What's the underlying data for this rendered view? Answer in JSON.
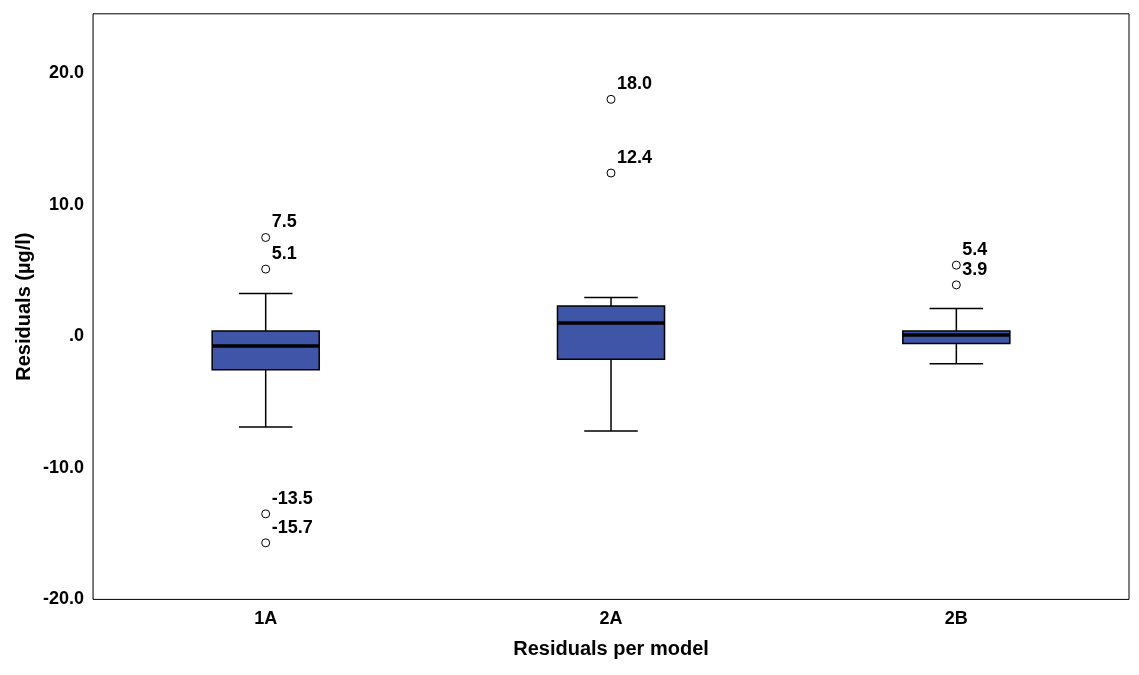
{
  "chart_data": {
    "type": "box",
    "xlabel": "Residuals per model",
    "ylabel": "Residuals (µg/l)",
    "categories": [
      "1A",
      "2A",
      "2B"
    ],
    "color": "#3f56a8",
    "boxes": [
      {
        "low": -6.9,
        "q1": -2.55,
        "median": -0.75,
        "q3": 0.4,
        "high": 3.25,
        "outliers": [
          7.5,
          5.1,
          -13.5,
          -15.7
        ]
      },
      {
        "low": -7.2,
        "q1": -1.75,
        "median": 1.0,
        "q3": 2.3,
        "high": 2.95,
        "outliers": [
          18.0,
          12.4
        ]
      },
      {
        "low": -2.1,
        "q1": -0.55,
        "median": 0.1,
        "q3": 0.4,
        "high": 2.1,
        "outliers": [
          5.4,
          3.9
        ]
      }
    ],
    "ylim": [
      -20,
      24.5
    ],
    "yticks": [
      {
        "value": -20,
        "label": "-20.0"
      },
      {
        "value": -10,
        "label": "-10.0"
      },
      {
        "value": 0,
        "label": ".0"
      },
      {
        "value": 10,
        "label": "10.0"
      },
      {
        "value": 20,
        "label": "20.0"
      }
    ],
    "grid": false,
    "legend": false,
    "annotations": [
      "7.5",
      "5.1",
      "-13.5",
      "-15.7",
      "18.0",
      "12.4",
      "5.4",
      "3.9"
    ]
  }
}
